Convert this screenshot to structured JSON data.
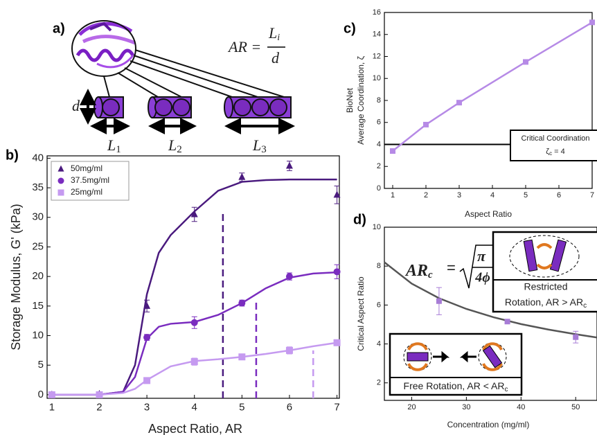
{
  "panel_a": {
    "label": "a)",
    "formula": {
      "lhs": "AR =",
      "num": "L",
      "num_sub": "i",
      "den": "d"
    },
    "d_label": "d",
    "lengths": [
      {
        "L": "L",
        "sub": "1"
      },
      {
        "L": "L",
        "sub": "2"
      },
      {
        "L": "L",
        "sub": "3"
      }
    ]
  },
  "chart_data": [
    {
      "type": "line",
      "label": "b)",
      "x_label": "Aspect Ratio, AR",
      "y_label": "Storage Modulus, G' (kPa)",
      "xlim": [
        0.9,
        7.05
      ],
      "ylim": [
        -0.6,
        40.4
      ],
      "xticks": [
        1,
        2,
        3,
        4,
        5,
        6,
        7
      ],
      "yticks": [
        0,
        5,
        10,
        15,
        20,
        25,
        30,
        35,
        40
      ],
      "x": [
        1,
        2,
        3,
        4,
        5,
        6,
        7
      ],
      "series": [
        {
          "name": "50mg/ml",
          "color": "#4a1a7e",
          "marker": "triangle",
          "values": [
            0,
            0.1,
            15,
            30.5,
            36.8,
            38.7,
            33.8
          ],
          "errors": [
            0.2,
            0.2,
            1,
            1.2,
            0.7,
            0.8,
            1.5
          ]
        },
        {
          "name": "37.5mg/ml",
          "color": "#7a2cbf",
          "marker": "circle",
          "values": [
            0,
            0,
            9.7,
            12.2,
            15.5,
            20,
            20.8
          ],
          "errors": [
            0.2,
            0.2,
            0.5,
            1,
            0.5,
            0.6,
            1.2
          ]
        },
        {
          "name": "25mg/ml",
          "color": "#c59af0",
          "marker": "square",
          "values": [
            0,
            0,
            2.4,
            5.6,
            6.4,
            7.5,
            8.8
          ],
          "errors": [
            0.2,
            0.2,
            0.3,
            0.6,
            0.4,
            0.6,
            0.4
          ]
        }
      ],
      "fits": [
        {
          "color": "#4a1a7e",
          "x": [
            1,
            1.5,
            2,
            2.5,
            2.75,
            3,
            3.25,
            3.5,
            4,
            4.5,
            5,
            5.5,
            6,
            7
          ],
          "values": [
            0,
            0,
            0,
            0.5,
            5,
            17,
            24,
            27,
            31,
            34.5,
            36,
            36.3,
            36.4,
            36.4
          ]
        },
        {
          "color": "#7a2cbf",
          "x": [
            1,
            2,
            2.5,
            2.75,
            3,
            3.25,
            3.5,
            4,
            4.5,
            5,
            5.5,
            6,
            6.5,
            7
          ],
          "values": [
            0,
            0,
            0.5,
            3,
            9.5,
            11.5,
            12,
            12.3,
            13.5,
            15.5,
            18,
            19.8,
            20.5,
            20.7
          ]
        },
        {
          "color": "#c59af0",
          "x": [
            1,
            2,
            2.5,
            2.75,
            3,
            3.5,
            4,
            4.5,
            5,
            5.5,
            6,
            6.5,
            7
          ],
          "values": [
            0,
            0,
            0.3,
            1,
            2.5,
            4.8,
            5.7,
            6,
            6.4,
            6.9,
            7.5,
            8.2,
            8.8
          ]
        }
      ],
      "critical_lines": [
        {
          "x": 4.6,
          "top": 31,
          "color": "#4a1a7e"
        },
        {
          "x": 5.3,
          "top": 16,
          "color": "#7a2cbf"
        },
        {
          "x": 6.5,
          "top": 7.5,
          "color": "#c59af0"
        }
      ],
      "legend": "upper left"
    },
    {
      "type": "line",
      "label": "c)",
      "x_label": "Aspect Ratio",
      "y_label": [
        "BioNet",
        "Average Coordination, ζ"
      ],
      "xlim": [
        0.75,
        7
      ],
      "ylim": [
        0,
        16
      ],
      "xticks": [
        1,
        2,
        3,
        4,
        5,
        6,
        7
      ],
      "yticks": [
        0,
        2,
        4,
        6,
        8,
        10,
        12,
        14,
        16
      ],
      "x": [
        1,
        2,
        3,
        5,
        7
      ],
      "series": [
        {
          "color": "#b68ae6",
          "marker": "square",
          "values": [
            3.4,
            5.8,
            7.8,
            11.5,
            15.1
          ]
        }
      ],
      "hline": 4,
      "annotation": {
        "line1": "Critical Coordination",
        "symbol": "ζ",
        "sub": "c",
        "rest": " = 4"
      }
    },
    {
      "type": "scatter",
      "label": "d)",
      "x_label": "Concentration (mg/ml)",
      "y_label": "Critical Aspect Ratio",
      "xlim": [
        15,
        53.9
      ],
      "ylim": [
        1.1,
        10
      ],
      "xticks": [
        20,
        30,
        40,
        50
      ],
      "yticks": [
        2,
        4,
        6,
        8,
        10
      ],
      "x": [
        25,
        37.5,
        50
      ],
      "series": [
        {
          "color": "#a77cd6",
          "marker": "square",
          "values": [
            6.2,
            5.15,
            4.35
          ],
          "errors": [
            0.7,
            0.1,
            0.3
          ]
        }
      ],
      "fits": [
        {
          "color": "#555555",
          "x": [
            15,
            20,
            25,
            30,
            35,
            40,
            45,
            50,
            53.9
          ],
          "values": [
            8.2,
            7.1,
            6.35,
            5.8,
            5.37,
            5.02,
            4.74,
            4.5,
            4.33
          ]
        }
      ],
      "formula": {
        "lhs": "AR",
        "sub": "c",
        "eq": "=",
        "num": "π",
        "den": "4ϕ"
      },
      "restricted": {
        "line1": "Restricted",
        "line2": "Rotation, AR > AR",
        "sub": "c"
      },
      "free": {
        "text": "Free Rotation, AR < AR",
        "sub": "c"
      }
    }
  ]
}
